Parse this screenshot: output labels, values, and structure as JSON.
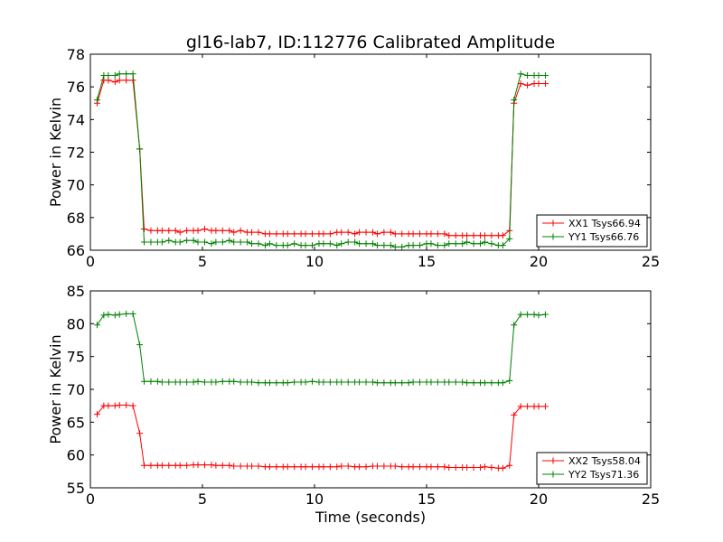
{
  "chart_data": [
    {
      "type": "line",
      "title": "gl16-lab7, ID:112776 Calibrated Amplitude",
      "xlabel": "",
      "ylabel": "Power in Kelvin",
      "xlim": [
        0,
        25
      ],
      "ylim": [
        66,
        78
      ],
      "xticks": [
        "0",
        "5",
        "10",
        "15",
        "20",
        "25"
      ],
      "yticks": [
        "66",
        "68",
        "70",
        "72",
        "74",
        "76",
        "78"
      ],
      "legend_position": "lower-right",
      "grid": false,
      "x": [
        0.3,
        0.6,
        0.8,
        1.1,
        1.3,
        1.6,
        1.9,
        2.2,
        2.4,
        2.7,
        3.0,
        3.2,
        3.5,
        3.8,
        4.0,
        4.3,
        4.6,
        4.8,
        5.1,
        5.4,
        5.6,
        5.9,
        6.2,
        6.4,
        6.7,
        7.0,
        7.2,
        7.5,
        7.8,
        8.0,
        8.3,
        8.6,
        8.8,
        9.1,
        9.4,
        9.6,
        9.9,
        10.2,
        10.4,
        10.7,
        11.0,
        11.2,
        11.5,
        11.8,
        12.0,
        12.3,
        12.6,
        12.8,
        13.1,
        13.4,
        13.6,
        13.9,
        14.2,
        14.4,
        14.7,
        15.0,
        15.2,
        15.5,
        15.8,
        16.0,
        16.3,
        16.6,
        16.8,
        17.1,
        17.4,
        17.6,
        17.9,
        18.2,
        18.4,
        18.7,
        18.9,
        19.2,
        19.5,
        19.8,
        20.0,
        20.3
      ],
      "series": [
        {
          "name": "XX1 Tsys66.94",
          "color": "#ff0000",
          "values": [
            75.0,
            76.4,
            76.4,
            76.3,
            76.4,
            76.4,
            76.4,
            72.2,
            67.3,
            67.2,
            67.2,
            67.2,
            67.2,
            67.2,
            67.1,
            67.2,
            67.2,
            67.2,
            67.3,
            67.2,
            67.2,
            67.2,
            67.2,
            67.1,
            67.2,
            67.1,
            67.1,
            67.1,
            67.0,
            67.0,
            67.0,
            67.0,
            67.0,
            67.0,
            67.0,
            67.0,
            67.0,
            67.0,
            67.0,
            67.0,
            67.1,
            67.1,
            67.1,
            67.0,
            67.1,
            67.1,
            67.1,
            67.0,
            67.1,
            67.1,
            67.0,
            67.0,
            67.0,
            67.0,
            67.0,
            67.0,
            67.0,
            67.0,
            67.0,
            66.9,
            66.9,
            66.9,
            66.9,
            66.9,
            66.9,
            66.9,
            66.9,
            66.9,
            66.9,
            67.2,
            75.0,
            76.2,
            76.1,
            76.2,
            76.2,
            76.2
          ]
        },
        {
          "name": "YY1 Tsys66.76",
          "color": "#008000",
          "values": [
            75.2,
            76.7,
            76.7,
            76.7,
            76.8,
            76.8,
            76.8,
            72.2,
            66.5,
            66.5,
            66.5,
            66.5,
            66.6,
            66.5,
            66.5,
            66.6,
            66.6,
            66.5,
            66.5,
            66.4,
            66.5,
            66.5,
            66.6,
            66.5,
            66.5,
            66.5,
            66.4,
            66.4,
            66.3,
            66.4,
            66.3,
            66.3,
            66.3,
            66.4,
            66.3,
            66.3,
            66.3,
            66.4,
            66.4,
            66.4,
            66.3,
            66.4,
            66.5,
            66.5,
            66.4,
            66.4,
            66.4,
            66.3,
            66.3,
            66.3,
            66.2,
            66.2,
            66.3,
            66.3,
            66.3,
            66.4,
            66.4,
            66.3,
            66.3,
            66.4,
            66.4,
            66.4,
            66.5,
            66.4,
            66.4,
            66.5,
            66.4,
            66.3,
            66.3,
            66.7,
            75.2,
            76.8,
            76.7,
            76.7,
            76.7,
            76.7
          ]
        }
      ]
    },
    {
      "type": "line",
      "title": "",
      "xlabel": "Time (seconds)",
      "ylabel": "Power in Kelvin",
      "xlim": [
        0,
        25
      ],
      "ylim": [
        55,
        85
      ],
      "xticks": [
        "0",
        "5",
        "10",
        "15",
        "20",
        "25"
      ],
      "yticks": [
        "55",
        "60",
        "65",
        "70",
        "75",
        "80",
        "85"
      ],
      "legend_position": "lower-right",
      "grid": false,
      "x": [
        0.3,
        0.6,
        0.8,
        1.1,
        1.3,
        1.6,
        1.9,
        2.2,
        2.4,
        2.7,
        3.0,
        3.2,
        3.5,
        3.8,
        4.0,
        4.3,
        4.6,
        4.8,
        5.1,
        5.4,
        5.6,
        5.9,
        6.2,
        6.4,
        6.7,
        7.0,
        7.2,
        7.5,
        7.8,
        8.0,
        8.3,
        8.6,
        8.8,
        9.1,
        9.4,
        9.6,
        9.9,
        10.2,
        10.4,
        10.7,
        11.0,
        11.2,
        11.5,
        11.8,
        12.0,
        12.3,
        12.6,
        12.8,
        13.1,
        13.4,
        13.6,
        13.9,
        14.2,
        14.4,
        14.7,
        15.0,
        15.2,
        15.5,
        15.8,
        16.0,
        16.3,
        16.6,
        16.8,
        17.1,
        17.4,
        17.6,
        17.9,
        18.2,
        18.4,
        18.7,
        18.9,
        19.2,
        19.5,
        19.8,
        20.0,
        20.3
      ],
      "series": [
        {
          "name": "XX2 Tsys58.04",
          "color": "#ff0000",
          "values": [
            66.2,
            67.5,
            67.5,
            67.5,
            67.6,
            67.6,
            67.5,
            63.3,
            58.4,
            58.4,
            58.4,
            58.4,
            58.4,
            58.4,
            58.4,
            58.4,
            58.5,
            58.5,
            58.5,
            58.5,
            58.4,
            58.4,
            58.4,
            58.3,
            58.3,
            58.3,
            58.3,
            58.3,
            58.2,
            58.2,
            58.2,
            58.2,
            58.2,
            58.2,
            58.2,
            58.2,
            58.2,
            58.2,
            58.2,
            58.2,
            58.2,
            58.3,
            58.3,
            58.2,
            58.2,
            58.2,
            58.3,
            58.3,
            58.3,
            58.3,
            58.3,
            58.2,
            58.2,
            58.2,
            58.2,
            58.2,
            58.2,
            58.2,
            58.2,
            58.1,
            58.1,
            58.1,
            58.1,
            58.1,
            58.1,
            58.2,
            58.1,
            58.0,
            58.0,
            58.4,
            66.1,
            67.4,
            67.4,
            67.4,
            67.4,
            67.4
          ]
        },
        {
          "name": "YY2 Tsys71.36",
          "color": "#008000",
          "values": [
            79.8,
            81.3,
            81.4,
            81.3,
            81.4,
            81.5,
            81.5,
            76.8,
            71.2,
            71.2,
            71.2,
            71.1,
            71.1,
            71.1,
            71.1,
            71.1,
            71.1,
            71.2,
            71.1,
            71.1,
            71.1,
            71.2,
            71.2,
            71.2,
            71.1,
            71.1,
            71.1,
            71.0,
            71.0,
            71.0,
            71.0,
            71.0,
            71.0,
            71.1,
            71.1,
            71.1,
            71.2,
            71.1,
            71.1,
            71.1,
            71.1,
            71.1,
            71.1,
            71.1,
            71.1,
            71.1,
            71.1,
            71.0,
            71.0,
            71.0,
            71.0,
            71.0,
            71.0,
            71.1,
            71.1,
            71.1,
            71.1,
            71.1,
            71.1,
            71.1,
            71.1,
            71.1,
            71.0,
            71.0,
            71.0,
            71.0,
            71.0,
            71.0,
            71.0,
            71.3,
            79.8,
            81.4,
            81.4,
            81.4,
            81.3,
            81.4
          ]
        }
      ]
    }
  ]
}
